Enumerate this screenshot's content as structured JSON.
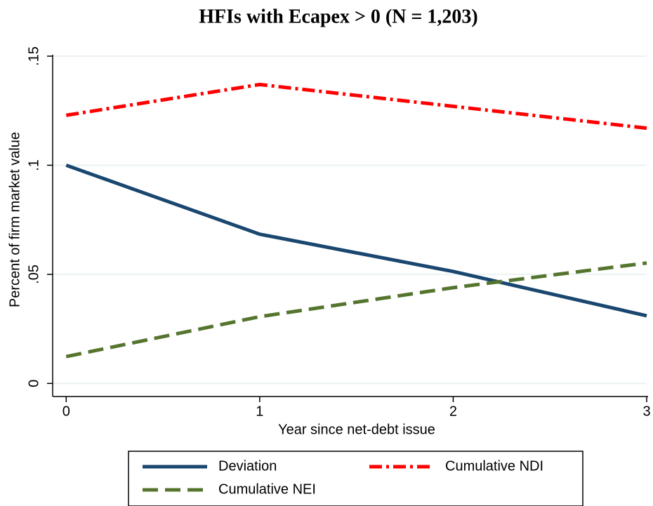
{
  "chart_data": {
    "type": "line",
    "title": "HFIs with Ecapex > 0 (N = 1,203)",
    "x_label": "Year since net-debt issue",
    "y_label": "Percent of firm market value",
    "x": [
      0,
      1,
      2,
      3
    ],
    "series": [
      {
        "name": "Deviation",
        "color": "#1a476f",
        "dash": "solid",
        "values": [
          0.1,
          0.0684,
          0.0513,
          0.031
        ]
      },
      {
        "name": "Cumulative NDI",
        "color": "#ff0000",
        "dash": "dashdot",
        "values": [
          0.1229,
          0.137,
          0.127,
          0.117
        ]
      },
      {
        "name": "Cumulative NEI",
        "color": "#55752f",
        "dash": "dashed",
        "values": [
          0.0123,
          0.0306,
          0.0439,
          0.0552
        ]
      }
    ],
    "xlim": [
      -0.07,
      3.0
    ],
    "ylim": [
      -0.006,
      0.15
    ],
    "xticks": [
      0,
      1,
      2,
      3
    ],
    "yticks": [
      0,
      {
        "value": 0.05,
        "label": ".05"
      },
      {
        "value": 0.1,
        "label": ".1"
      },
      {
        "value": 0.15,
        "label": ".15"
      }
    ],
    "grid": true,
    "legend": "bottom"
  }
}
